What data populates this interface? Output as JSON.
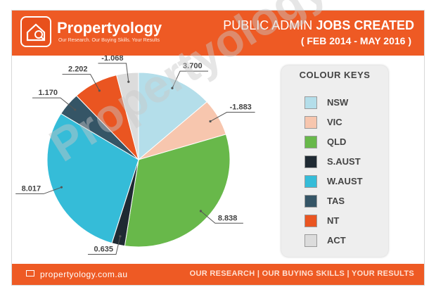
{
  "brand": {
    "name": "Propertyology",
    "tagline": "Our Research. Our Buying Skills. Your Results"
  },
  "title": {
    "prefix": "PUBLIC ADMIN",
    "highlight": "JOBS CREATED",
    "subtitle": "( FEB 2014 - MAY 2016 )"
  },
  "keys_title": "COLOUR KEYS",
  "footer": {
    "site": "propertyology.com.au",
    "slogan": "OUR RESEARCH | OUR BUYING SKILLS | YOUR RESULTS"
  },
  "watermark": "Propertyology",
  "colors": {
    "accent": "#ee5a24"
  },
  "chart_data": {
    "type": "pie",
    "title": "PUBLIC ADMIN JOBS CREATED ( FEB 2014 - MAY 2016 )",
    "categories": [
      "NSW",
      "VIC",
      "QLD",
      "S.AUST",
      "W.AUST",
      "TAS",
      "NT",
      "ACT"
    ],
    "values": [
      3.7,
      -1.883,
      8.838,
      0.635,
      8.017,
      1.17,
      2.202,
      -1.068
    ],
    "labels": [
      "3.700",
      "-1.883",
      "8.838",
      "0.635",
      "8.017",
      "1.170",
      "2.202",
      "-1.068"
    ],
    "colors": [
      "#b4deea",
      "#f7c6ae",
      "#68b84a",
      "#1f2a33",
      "#35bcd8",
      "#355566",
      "#ea5521",
      "#dcdcdc"
    ],
    "legend": "right"
  }
}
